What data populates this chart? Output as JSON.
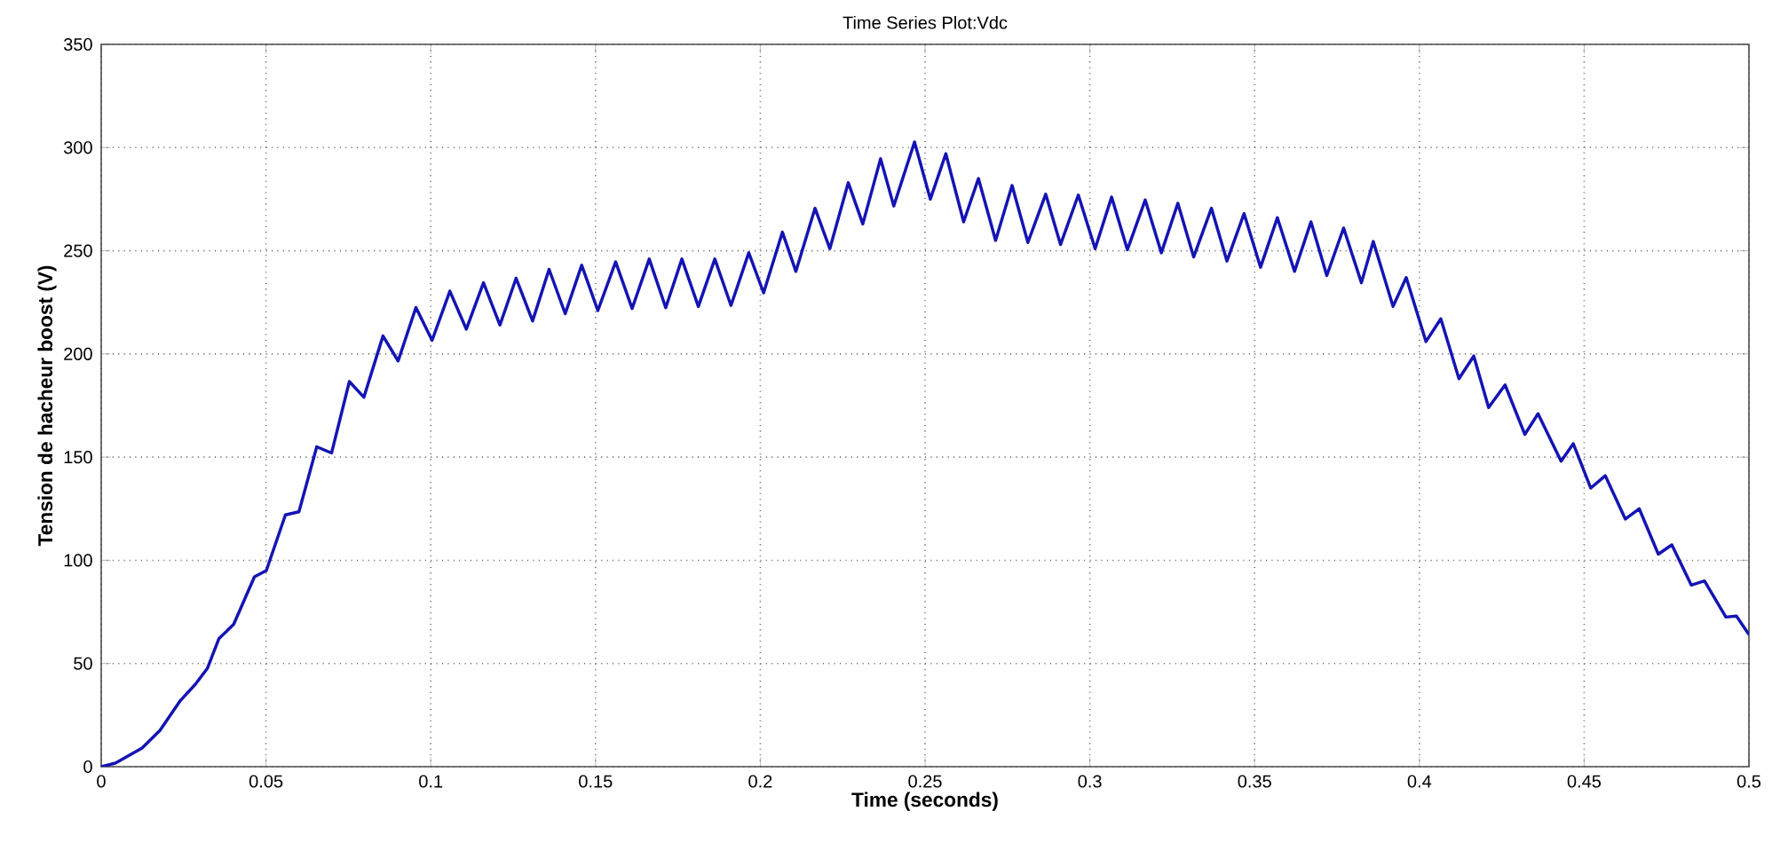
{
  "chart_data": {
    "type": "line",
    "title": "Time Series Plot:Vdc",
    "xlabel": "Time (seconds)",
    "ylabel": "Tension de hacheur boost (V)",
    "xlim": [
      0,
      0.5
    ],
    "ylim": [
      0,
      350
    ],
    "xticks": [
      0,
      0.05,
      0.1,
      0.15,
      0.2,
      0.25,
      0.3,
      0.35,
      0.4,
      0.45,
      0.5
    ],
    "yticks": [
      0,
      50,
      100,
      150,
      200,
      250,
      300,
      350
    ],
    "grid": true,
    "line_style": "solid",
    "marker": "none",
    "series": [
      {
        "color": "#1414b4",
        "x": [
          0,
          0.0043,
          0.0124,
          0.0178,
          0.024,
          0.0286,
          0.0322,
          0.0357,
          0.0402,
          0.0465,
          0.0501,
          0.0559,
          0.06,
          0.0654,
          0.0699,
          0.0753,
          0.0797,
          0.0855,
          0.0901,
          0.0955,
          0.1004,
          0.1058,
          0.1108,
          0.116,
          0.121,
          0.1259,
          0.1309,
          0.1359,
          0.1408,
          0.1458,
          0.1507,
          0.1561,
          0.1611,
          0.1663,
          0.1713,
          0.1762,
          0.1812,
          0.1862,
          0.1911,
          0.1965,
          0.201,
          0.2067,
          0.2108,
          0.2166,
          0.2211,
          0.2267,
          0.2311,
          0.2365,
          0.2405,
          0.2468,
          0.2516,
          0.2563,
          0.2617,
          0.2662,
          0.2714,
          0.2764,
          0.2812,
          0.2866,
          0.2911,
          0.2965,
          0.3016,
          0.3066,
          0.3114,
          0.3168,
          0.3217,
          0.3267,
          0.3315,
          0.3369,
          0.3416,
          0.3468,
          0.3518,
          0.3569,
          0.3621,
          0.3671,
          0.3719,
          0.377,
          0.3824,
          0.386,
          0.392,
          0.396,
          0.402,
          0.4065,
          0.412,
          0.4165,
          0.421,
          0.426,
          0.432,
          0.436,
          0.443,
          0.4467,
          0.452,
          0.4564,
          0.4625,
          0.4667,
          0.4725,
          0.4766,
          0.4825,
          0.4865,
          0.493,
          0.4962,
          0.5
        ],
        "values": [
          0,
          1.7,
          9,
          17.5,
          32,
          40,
          47.6,
          62,
          69,
          92,
          95,
          122,
          123.5,
          155,
          152,
          186.6,
          179,
          208.7,
          196.6,
          222.5,
          206.6,
          230.4,
          212,
          234.5,
          214,
          236.7,
          216,
          241,
          219.5,
          243,
          221,
          244.6,
          222,
          246,
          222.4,
          246,
          223,
          246,
          223.5,
          249,
          229.6,
          259,
          240,
          270.6,
          251,
          283,
          263,
          294.6,
          271.7,
          302.7,
          275,
          297,
          264,
          285,
          255,
          281.6,
          254,
          277.4,
          253,
          277,
          251,
          276,
          250.5,
          274.6,
          249,
          273,
          247,
          270.6,
          245,
          268,
          242,
          266,
          240,
          264,
          238,
          261,
          234.5,
          254.5,
          223,
          237,
          206,
          217,
          188,
          199,
          174,
          185,
          161,
          171,
          148,
          156.5,
          135,
          141,
          120,
          125,
          103,
          107.5,
          88,
          90,
          72.5,
          73,
          64
        ]
      }
    ]
  }
}
